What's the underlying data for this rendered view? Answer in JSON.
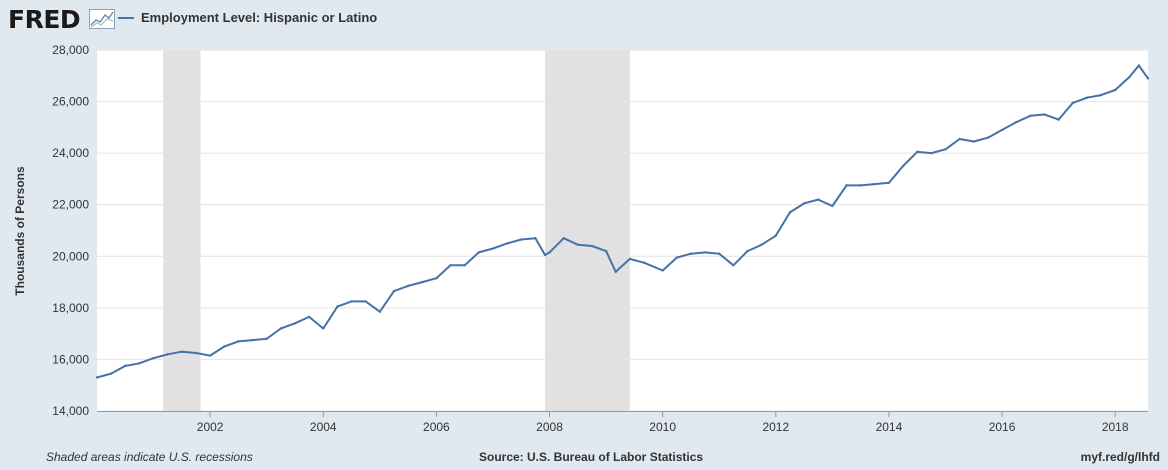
{
  "header": {
    "logo_text": "FRED",
    "logo_icon": "trend-chart-icon",
    "legend_label": "Employment Level: Hispanic or Latino"
  },
  "footer": {
    "recession_note": "Shaded areas indicate U.S. recessions",
    "source": "Source: U.S. Bureau of Labor Statistics",
    "short_url": "myf.red/g/lhfd"
  },
  "colors": {
    "background": "#e1e9f0",
    "plot_background": "#ffffff",
    "series": "#4572a7",
    "recession_shade": "#e1e1e1",
    "grid": "#e4e4e4"
  },
  "chart_data": {
    "type": "line",
    "title": "",
    "xlabel": "",
    "ylabel": "Thousands of Persons",
    "ylim": [
      14000,
      28000
    ],
    "yticks": [
      "14,000",
      "16,000",
      "18,000",
      "20,000",
      "22,000",
      "24,000",
      "26,000",
      "28,000"
    ],
    "xlim": [
      2000.0,
      2018.58
    ],
    "xticks": [
      "2002",
      "2004",
      "2006",
      "2008",
      "2010",
      "2012",
      "2014",
      "2016",
      "2018"
    ],
    "grid": true,
    "recessions": [
      [
        2001.17,
        2001.83
      ],
      [
        2007.92,
        2009.42
      ]
    ],
    "series": [
      {
        "name": "Employment Level: Hispanic or Latino",
        "x": [
          2000.0,
          2000.25,
          2000.5,
          2000.75,
          2001.0,
          2001.25,
          2001.5,
          2001.75,
          2002.0,
          2002.25,
          2002.5,
          2002.75,
          2003.0,
          2003.25,
          2003.5,
          2003.75,
          2004.0,
          2004.25,
          2004.5,
          2004.75,
          2005.0,
          2005.25,
          2005.5,
          2005.75,
          2006.0,
          2006.25,
          2006.5,
          2006.75,
          2007.0,
          2007.25,
          2007.5,
          2007.75,
          2007.92,
          2008.0,
          2008.25,
          2008.5,
          2008.75,
          2009.0,
          2009.17,
          2009.42,
          2009.67,
          2010.0,
          2010.25,
          2010.5,
          2010.75,
          2011.0,
          2011.25,
          2011.5,
          2011.75,
          2012.0,
          2012.25,
          2012.5,
          2012.75,
          2013.0,
          2013.25,
          2013.5,
          2013.75,
          2014.0,
          2014.25,
          2014.5,
          2014.75,
          2015.0,
          2015.25,
          2015.5,
          2015.75,
          2016.0,
          2016.25,
          2016.5,
          2016.75,
          2017.0,
          2017.25,
          2017.5,
          2017.75,
          2018.0,
          2018.25,
          2018.42,
          2018.58
        ],
        "y": [
          15300,
          15450,
          15750,
          15850,
          16050,
          16200,
          16300,
          16250,
          16150,
          16500,
          16700,
          16750,
          16800,
          17200,
          17400,
          17650,
          17200,
          18050,
          18250,
          18250,
          17850,
          18650,
          18850,
          19000,
          19150,
          19650,
          19650,
          20150,
          20300,
          20500,
          20650,
          20700,
          20050,
          20150,
          20700,
          20450,
          20400,
          20200,
          19400,
          19900,
          19750,
          19450,
          19950,
          20100,
          20150,
          20100,
          19650,
          20200,
          20450,
          20800,
          21700,
          22050,
          22200,
          21950,
          22750,
          22750,
          22800,
          22850,
          23500,
          24050,
          24000,
          24150,
          24550,
          24450,
          24600,
          24900,
          25200,
          25450,
          25500,
          25300,
          25950,
          26150,
          26250,
          26450,
          26950,
          27400,
          26900
        ]
      }
    ]
  }
}
